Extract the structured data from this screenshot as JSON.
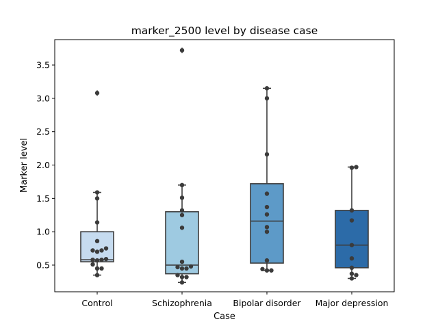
{
  "chart_data": {
    "type": "box",
    "title": "marker_2500 level by disease case",
    "xlabel": "Case",
    "ylabel": "Marker level",
    "ylim": [
      0.1,
      3.88
    ],
    "yticks": [
      "0.5",
      "1.0",
      "1.5",
      "2.0",
      "2.5",
      "3.0",
      "3.5"
    ],
    "grid": false,
    "categories": [
      "Control",
      "Schizophrenia",
      "Bipolar disorder",
      "Major depression"
    ],
    "colors": [
      "#c6dbef",
      "#9ecae1",
      "#5d9ac8",
      "#2c6ba8"
    ],
    "boxes": [
      {
        "q1": 0.55,
        "median": 0.58,
        "q3": 1.0,
        "whisker_low": 0.35,
        "whisker_high": 1.59,
        "outliers": [
          3.08
        ]
      },
      {
        "q1": 0.37,
        "median": 0.5,
        "q3": 1.3,
        "whisker_low": 0.24,
        "whisker_high": 1.7,
        "outliers": [
          3.72
        ]
      },
      {
        "q1": 0.53,
        "median": 1.16,
        "q3": 1.72,
        "whisker_low": 0.42,
        "whisker_high": 3.15,
        "outliers": []
      },
      {
        "q1": 0.46,
        "median": 0.8,
        "q3": 1.32,
        "whisker_low": 0.3,
        "whisker_high": 1.97,
        "outliers": []
      }
    ],
    "points": [
      [
        0.35,
        0.45,
        0.45,
        0.51,
        0.57,
        0.58,
        0.58,
        0.59,
        0.7,
        0.72,
        0.72,
        0.75,
        0.86,
        1.14,
        1.5,
        1.59,
        3.08
      ],
      [
        0.24,
        0.32,
        0.32,
        0.35,
        0.45,
        0.45,
        0.47,
        0.48,
        0.55,
        1.06,
        1.25,
        1.32,
        1.51,
        1.7,
        3.72
      ],
      [
        0.42,
        0.42,
        0.44,
        0.57,
        1.0,
        1.07,
        1.26,
        1.37,
        1.57,
        2.16,
        3.0,
        3.15
      ],
      [
        0.3,
        0.35,
        0.37,
        0.46,
        0.6,
        0.8,
        1.17,
        1.32,
        1.96,
        1.97
      ]
    ]
  }
}
